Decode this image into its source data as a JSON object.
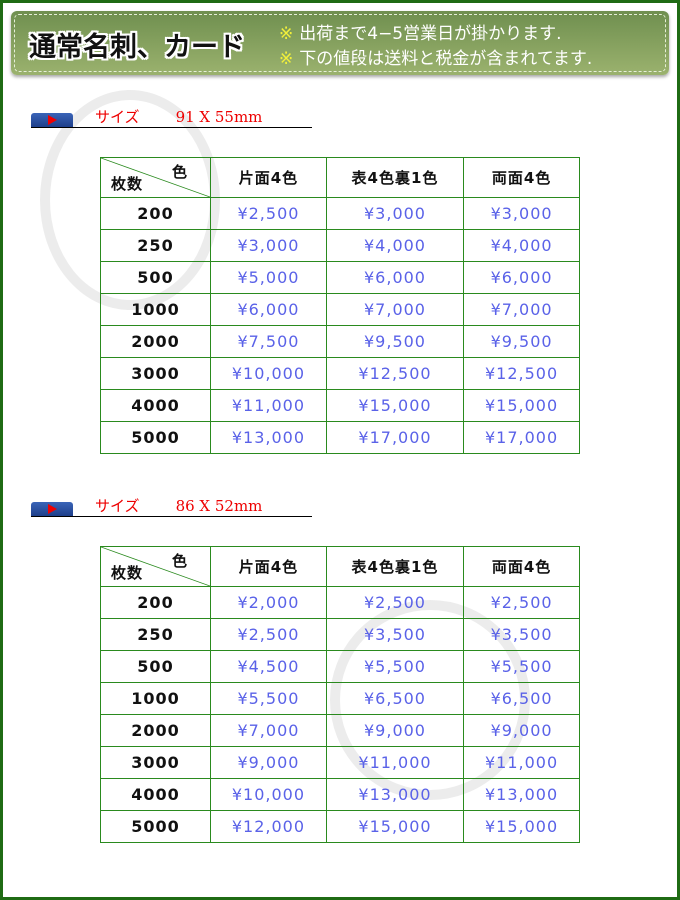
{
  "banner": {
    "title": "通常名刺、カード",
    "notes": [
      {
        "mark": "※",
        "text": "出荷まで4−5営業日が掛かります."
      },
      {
        "mark": "※",
        "text": "下の値段は送料と税金が含まれてます."
      }
    ]
  },
  "header": {
    "color": "色",
    "qty": "枚数",
    "cols": [
      "片面4色",
      "表4色裏1色",
      "両面4色"
    ]
  },
  "sections": [
    {
      "label": "サイズ",
      "size": "91 X 55mm",
      "rows": [
        [
          "200",
          "¥2,500",
          "¥3,000",
          "¥3,000"
        ],
        [
          "250",
          "¥3,000",
          "¥4,000",
          "¥4,000"
        ],
        [
          "500",
          "¥5,000",
          "¥6,000",
          "¥6,000"
        ],
        [
          "1000",
          "¥6,000",
          "¥7,000",
          "¥7,000"
        ],
        [
          "2000",
          "¥7,500",
          "¥9,500",
          "¥9,500"
        ],
        [
          "3000",
          "¥10,000",
          "¥12,500",
          "¥12,500"
        ],
        [
          "4000",
          "¥11,000",
          "¥15,000",
          "¥15,000"
        ],
        [
          "5000",
          "¥13,000",
          "¥17,000",
          "¥17,000"
        ]
      ]
    },
    {
      "label": "サイズ",
      "size": "86 X 52mm",
      "rows": [
        [
          "200",
          "¥2,000",
          "¥2,500",
          "¥2,500"
        ],
        [
          "250",
          "¥2,500",
          "¥3,500",
          "¥3,500"
        ],
        [
          "500",
          "¥4,500",
          "¥5,500",
          "¥5,500"
        ],
        [
          "1000",
          "¥5,500",
          "¥6,500",
          "¥6,500"
        ],
        [
          "2000",
          "¥7,000",
          "¥9,000",
          "¥9,000"
        ],
        [
          "3000",
          "¥9,000",
          "¥11,000",
          "¥11,000"
        ],
        [
          "4000",
          "¥10,000",
          "¥13,000",
          "¥13,000"
        ],
        [
          "5000",
          "¥12,000",
          "¥15,000",
          "¥15,000"
        ]
      ]
    }
  ],
  "colors": {
    "frame": "#1f6b14",
    "price": "#5a62e8",
    "size_label": "#e00000",
    "grid": "#2a8a1e"
  }
}
